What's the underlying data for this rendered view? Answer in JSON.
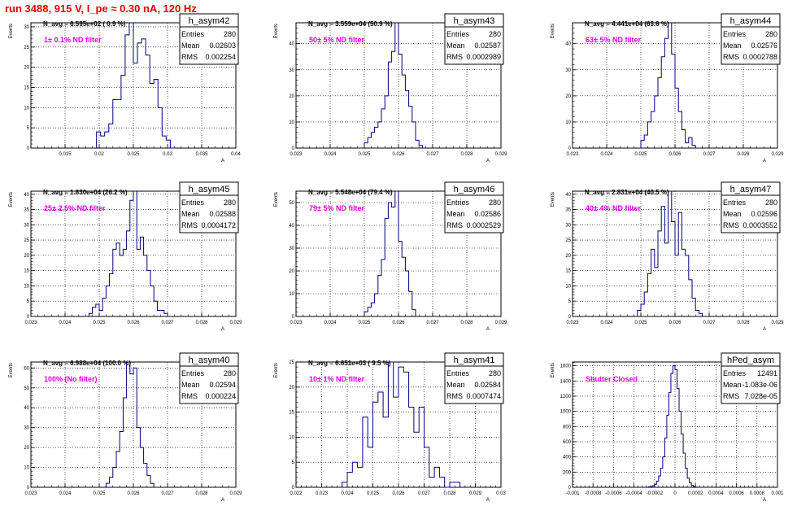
{
  "run_title": "run 3488,   915 V, I_pe ≈ 0.30 nA, 120 Hz",
  "colors": {
    "title": "#e60000",
    "histogram": "#000080",
    "annotation": "#e000e0",
    "grid": "#000000",
    "frame": "#000000",
    "background": "#ffffff"
  },
  "chart_data": [
    {
      "type": "bar",
      "histogram": true,
      "name": "h_asym42",
      "stats": {
        "entries_label": "Entries",
        "entries": "280",
        "mean_label": "Mean",
        "mean": "0.02603",
        "rms_label": "RMS",
        "rms": "0.002254"
      },
      "navg": "N_avg = 6.595e+02 ( 0.9 %)",
      "annotation": "1± 0.1% ND filter",
      "ylabel": "Events",
      "xlabel": "A",
      "xlim": [
        0.01,
        0.04
      ],
      "ylim": [
        0,
        31
      ],
      "xticks": [
        "0.015",
        "0.02",
        "0.025",
        "0.03",
        "0.035",
        "0.04"
      ],
      "yticks": [
        "0",
        "5",
        "10",
        "15",
        "20",
        "25",
        "30"
      ],
      "bin_edges": [
        0.0196,
        0.0202,
        0.0208,
        0.0214,
        0.022,
        0.0226,
        0.0232,
        0.0238,
        0.0244,
        0.025,
        0.0256,
        0.0262,
        0.0268,
        0.0274,
        0.028,
        0.0286,
        0.0292,
        0.0298,
        0.0304,
        0.031
      ],
      "counts": [
        4,
        3,
        4,
        6,
        12,
        12,
        18,
        28,
        31,
        21,
        26,
        27,
        23,
        16,
        17,
        10,
        3,
        2,
        0
      ]
    },
    {
      "type": "bar",
      "histogram": true,
      "name": "h_asym43",
      "stats": {
        "entries_label": "Entries",
        "entries": "280",
        "mean_label": "Mean",
        "mean": "0.02587",
        "rms_label": "RMS",
        "rms": "0.0002989"
      },
      "navg": "N_avg = 3.559e+04 (50.9 %)",
      "annotation": "50± 5% ND filter",
      "ylabel": "Events",
      "xlabel": "A",
      "xlim": [
        0.023,
        0.029
      ],
      "ylim": [
        0,
        48
      ],
      "xticks": [
        "0.023",
        "0.024",
        "0.025",
        "0.026",
        "0.027",
        "0.028",
        "0.029"
      ],
      "yticks": [
        "0",
        "10",
        "20",
        "30",
        "40"
      ],
      "bin_edges": [
        0.025,
        0.0251,
        0.0252,
        0.0253,
        0.0254,
        0.0255,
        0.0256,
        0.0257,
        0.0258,
        0.0259,
        0.026,
        0.0261,
        0.0262,
        0.0263,
        0.0264,
        0.0265,
        0.0266,
        0.0267
      ],
      "counts": [
        2,
        4,
        6,
        8,
        10,
        15,
        20,
        33,
        37,
        48,
        36,
        28,
        22,
        16,
        10,
        3,
        1
      ]
    },
    {
      "type": "bar",
      "histogram": true,
      "name": "h_asym44",
      "stats": {
        "entries_label": "Entries",
        "entries": "280",
        "mean_label": "Mean",
        "mean": "0.02576",
        "rms_label": "RMS",
        "rms": "0.0002788"
      },
      "navg": "N_avg = 4.441e+04 (63.6 %)",
      "annotation": "63± 5% ND filter",
      "ylabel": "Events",
      "xlabel": "A",
      "xlim": [
        0.023,
        0.029
      ],
      "ylim": [
        0,
        48
      ],
      "xticks": [
        "0.023",
        "0.024",
        "0.025",
        "0.026",
        "0.027",
        "0.028",
        "0.029"
      ],
      "yticks": [
        "0",
        "10",
        "20",
        "30",
        "40"
      ],
      "bin_edges": [
        0.025,
        0.0251,
        0.0252,
        0.0253,
        0.0254,
        0.0255,
        0.0256,
        0.0257,
        0.0258,
        0.0259,
        0.026,
        0.0261,
        0.0262,
        0.0263,
        0.0264,
        0.0265,
        0.0266
      ],
      "counts": [
        3,
        5,
        10,
        14,
        20,
        27,
        35,
        42,
        48,
        36,
        23,
        14,
        7,
        2,
        4,
        1
      ]
    },
    {
      "type": "bar",
      "histogram": true,
      "name": "h_asym45",
      "stats": {
        "entries_label": "Entries",
        "entries": "280",
        "mean_label": "Mean",
        "mean": "0.02588",
        "rms_label": "RMS",
        "rms": "0.0004172"
      },
      "navg": "N_avg = 1.830e+04 (26.2 %)",
      "annotation": "25± 2.5% ND filter",
      "ylabel": "Events",
      "xlabel": "A",
      "xlim": [
        0.023,
        0.029
      ],
      "ylim": [
        0,
        41
      ],
      "xticks": [
        "0.023",
        "0.024",
        "0.025",
        "0.026",
        "0.027",
        "0.028",
        "0.029"
      ],
      "yticks": [
        "0",
        "5",
        "10",
        "15",
        "20",
        "25",
        "30",
        "35",
        "40"
      ],
      "bin_edges": [
        0.0247,
        0.0248,
        0.0249,
        0.025,
        0.0251,
        0.0252,
        0.0253,
        0.0254,
        0.0255,
        0.0256,
        0.0257,
        0.0258,
        0.0259,
        0.026,
        0.0261,
        0.0262,
        0.0263,
        0.0264,
        0.0265,
        0.0266,
        0.0267,
        0.0268,
        0.0269,
        0.027
      ],
      "counts": [
        1,
        3,
        4,
        2,
        6,
        10,
        14,
        22,
        24,
        20,
        22,
        28,
        38,
        41,
        22,
        26,
        20,
        15,
        10,
        5,
        2,
        2,
        1
      ]
    },
    {
      "type": "bar",
      "histogram": true,
      "name": "h_asym46",
      "stats": {
        "entries_label": "Entries",
        "entries": "280",
        "mean_label": "Mean",
        "mean": "0.02586",
        "rms_label": "RMS",
        "rms": "0.0002529"
      },
      "navg": "N_avg = 5.548e+04 (79.4 %)",
      "annotation": "79± 5% ND filter",
      "ylabel": "Events",
      "xlabel": "A",
      "xlim": [
        0.023,
        0.029
      ],
      "ylim": [
        0,
        55
      ],
      "xticks": [
        "0.023",
        "0.024",
        "0.025",
        "0.026",
        "0.027",
        "0.028",
        "0.029"
      ],
      "yticks": [
        "0",
        "10",
        "20",
        "30",
        "40",
        "50"
      ],
      "bin_edges": [
        0.025,
        0.0251,
        0.0252,
        0.0253,
        0.0254,
        0.0255,
        0.0256,
        0.0257,
        0.0258,
        0.0259,
        0.026,
        0.0261,
        0.0262,
        0.0263,
        0.0264,
        0.0265
      ],
      "counts": [
        2,
        4,
        6,
        10,
        18,
        25,
        43,
        50,
        48,
        55,
        33,
        26,
        20,
        11,
        3
      ]
    },
    {
      "type": "bar",
      "histogram": true,
      "name": "h_asym47",
      "stats": {
        "entries_label": "Entries",
        "entries": "280",
        "mean_label": "Mean",
        "mean": "0.02596",
        "rms_label": "RMS",
        "rms": "0.0003552"
      },
      "navg": "N_avg = 2.831e+04 (40.5 %)",
      "annotation": "40± 4% ND filter",
      "ylabel": "Events",
      "xlabel": "A",
      "xlim": [
        0.023,
        0.029
      ],
      "ylim": [
        0,
        41
      ],
      "xticks": [
        "0.023",
        "0.024",
        "0.025",
        "0.026",
        "0.027",
        "0.028",
        "0.029"
      ],
      "yticks": [
        "0",
        "5",
        "10",
        "15",
        "20",
        "25",
        "30",
        "35",
        "40"
      ],
      "bin_edges": [
        0.0249,
        0.025,
        0.0251,
        0.0252,
        0.0253,
        0.0254,
        0.0255,
        0.0256,
        0.0257,
        0.0258,
        0.0259,
        0.026,
        0.0261,
        0.0262,
        0.0263,
        0.0264,
        0.0265,
        0.0266,
        0.0267,
        0.0268
      ],
      "counts": [
        2,
        4,
        8,
        14,
        22,
        16,
        28,
        36,
        24,
        41,
        31,
        20,
        34,
        22,
        20,
        12,
        6,
        2,
        1
      ]
    },
    {
      "type": "bar",
      "histogram": true,
      "name": "h_asym40",
      "stats": {
        "entries_label": "Entries",
        "entries": "280",
        "mean_label": "Mean",
        "mean": "0.02594",
        "rms_label": "RMS",
        "rms": "0.000224"
      },
      "navg": "N_avg = 6.988e+04 (100.0 %)",
      "annotation": "100% (No filter)",
      "ylabel": "Events",
      "xlabel": "A",
      "xlim": [
        0.023,
        0.029
      ],
      "ylim": [
        0,
        63
      ],
      "xticks": [
        "0.023",
        "0.024",
        "0.025",
        "0.026",
        "0.027",
        "0.028",
        "0.029"
      ],
      "yticks": [
        "0",
        "10",
        "20",
        "30",
        "40",
        "50",
        "60"
      ],
      "bin_edges": [
        0.0252,
        0.0253,
        0.0254,
        0.0255,
        0.0256,
        0.0257,
        0.0258,
        0.0259,
        0.026,
        0.0261,
        0.0262,
        0.0263,
        0.0264,
        0.0265,
        0.0266
      ],
      "counts": [
        2,
        5,
        10,
        18,
        28,
        45,
        63,
        57,
        60,
        30,
        20,
        12,
        6,
        2
      ]
    },
    {
      "type": "bar",
      "histogram": true,
      "name": "h_asym41",
      "stats": {
        "entries_label": "Entries",
        "entries": "280",
        "mean_label": "Mean",
        "mean": "0.02584",
        "rms_label": "RMS",
        "rms": "0.0007474"
      },
      "navg": "N_avg = 6.651e+03 ( 9.5 %)",
      "annotation": "10± 1% ND filter",
      "ylabel": "Events",
      "xlabel": "A",
      "xlim": [
        0.022,
        0.03
      ],
      "ylim": [
        0,
        25
      ],
      "xticks": [
        "0.022",
        "0.023",
        "0.024",
        "0.025",
        "0.026",
        "0.027",
        "0.028",
        "0.029",
        "0.03"
      ],
      "yticks": [
        "0",
        "5",
        "10",
        "15",
        "20",
        "25"
      ],
      "bin_edges": [
        0.0238,
        0.024,
        0.0242,
        0.0244,
        0.0246,
        0.0248,
        0.025,
        0.0252,
        0.0254,
        0.0256,
        0.0258,
        0.026,
        0.0262,
        0.0264,
        0.0266,
        0.0268,
        0.027,
        0.0272,
        0.0274,
        0.0276,
        0.0278,
        0.028,
        0.0282,
        0.0284
      ],
      "counts": [
        1,
        3,
        5,
        4,
        14,
        8,
        17,
        19,
        14,
        25,
        18,
        24,
        23,
        16,
        11,
        16,
        8,
        2,
        4,
        2,
        0,
        1,
        1
      ]
    },
    {
      "type": "bar",
      "histogram": true,
      "name": "hPed_asym",
      "stats": {
        "entries_label": "Entries",
        "entries": "12491",
        "mean_label": "Mean",
        "mean": "-1.083e-06",
        "rms_label": "RMS",
        "rms": "7.028e-05"
      },
      "navg": "",
      "annotation": "Shutter Closed",
      "ylabel": "Events",
      "xlabel": "A",
      "xlim": [
        -0.001,
        0.001
      ],
      "ylim": [
        0,
        1650
      ],
      "xticks": [
        "-0.001",
        "-0.0008",
        "-0.0006",
        "-0.0004",
        "-0.0002",
        "0",
        "0.0002",
        "0.0004",
        "0.0006",
        "0.0008",
        "0.001"
      ],
      "yticks": [
        "0",
        "200",
        "400",
        "600",
        "800",
        "1000",
        "1200",
        "1400",
        "1600"
      ],
      "bin_edges": [
        -0.00026,
        -0.00024,
        -0.00022,
        -0.0002,
        -0.00018,
        -0.00016,
        -0.00014,
        -0.00012,
        -0.0001,
        -8e-05,
        -6e-05,
        -4e-05,
        -2e-05,
        0.0,
        2e-05,
        4e-05,
        6e-05,
        8e-05,
        0.0001,
        0.00012,
        0.00014,
        0.00016,
        0.00018,
        0.0002,
        0.00022
      ],
      "counts": [
        5,
        10,
        20,
        40,
        80,
        150,
        250,
        400,
        650,
        950,
        1250,
        1500,
        1600,
        1550,
        1300,
        1000,
        700,
        450,
        250,
        120,
        60,
        25,
        10,
        3
      ]
    }
  ]
}
